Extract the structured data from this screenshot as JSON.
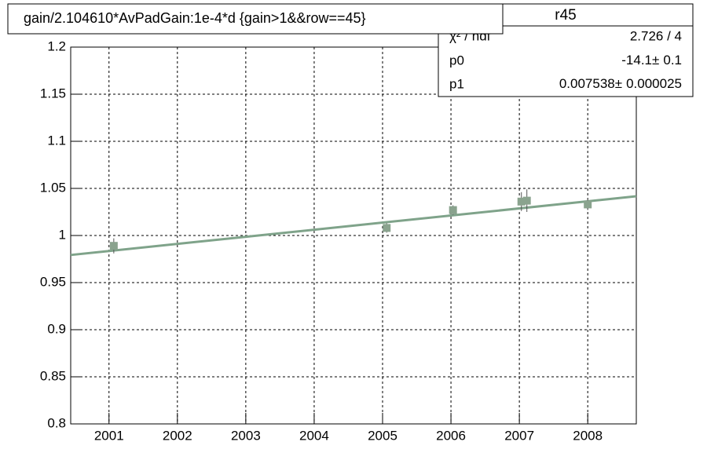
{
  "chart_data": {
    "type": "errorbar",
    "title": "gain/2.104610*AvPadGain:1e-4*d  {gain>1&&row==45}",
    "x": [
      2001.07,
      2005.06,
      2006.03,
      2007.03,
      2007.11,
      2008.0
    ],
    "values": [
      0.989,
      1.008,
      1.027,
      1.036,
      1.037,
      1.033
    ],
    "errors": [
      0.008,
      0.005,
      0.005,
      0.01,
      0.012,
      0.006
    ],
    "color": "#8aa38e",
    "xlim": [
      2000.44,
      2008.71
    ],
    "xticks": [
      2001,
      2002,
      2003,
      2004,
      2005,
      2006,
      2007,
      2008
    ],
    "ylim": [
      0.8,
      1.2
    ],
    "yticks": [
      0.8,
      0.85,
      0.9,
      0.95,
      1,
      1.05,
      1.1,
      1.15,
      1.2
    ],
    "grid": true,
    "fit": {
      "name": "r45",
      "chi2_label": "χ² / ndf",
      "chi2": "2.726 / 4",
      "pm": "±",
      "color": "#7fa38a",
      "params": [
        {
          "name": "p0",
          "value": -14.1,
          "error": 0.1
        },
        {
          "name": "p1",
          "value": 0.007538,
          "error": 2.5e-05
        }
      ]
    }
  }
}
